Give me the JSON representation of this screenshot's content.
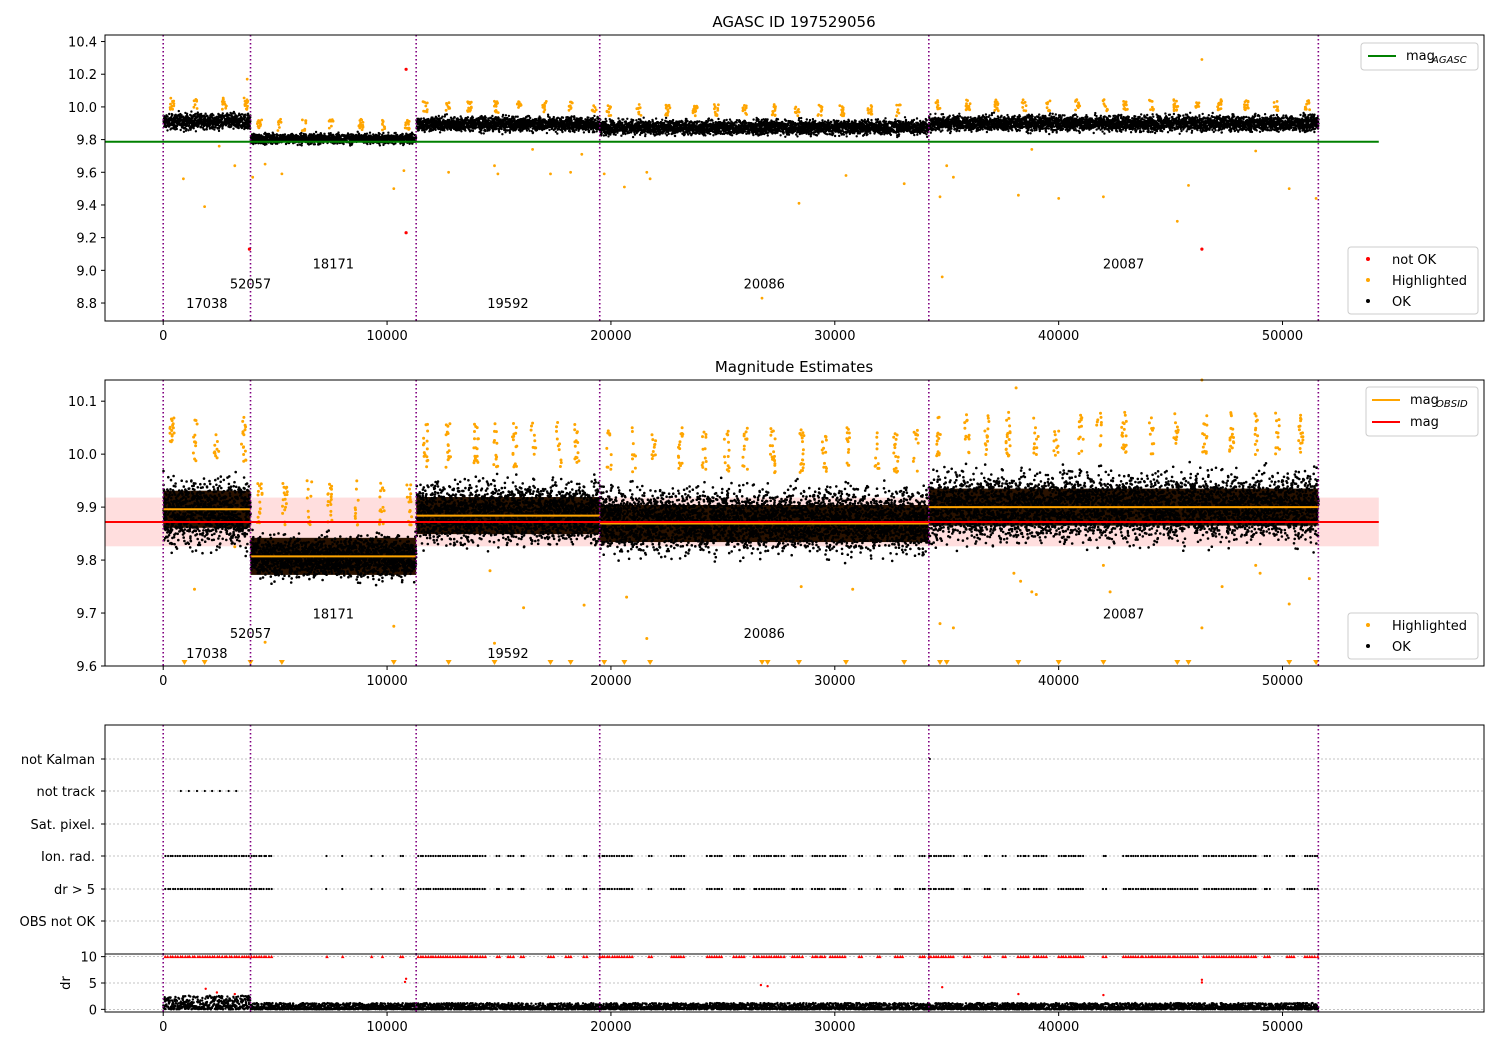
{
  "figure": {
    "title1": "AGASC ID 197529056",
    "title2": "Magnitude Estimates"
  },
  "colors": {
    "ok": "#000000",
    "highlighted": "#ffa500",
    "not_ok": "#ff0000",
    "mag_agasc": "#008000",
    "mag_obsid": "#ffa500",
    "mag": "#ff0000",
    "band": "#ffdede",
    "obs_line": "#800080",
    "grid": "#b0b0b0"
  },
  "chart_data": [
    {
      "type": "scatter",
      "title": "AGASC ID 197529056",
      "xlim": [
        -2600,
        59000
      ],
      "ylim": [
        8.69,
        10.44
      ],
      "xticks": [
        0,
        10000,
        20000,
        30000,
        40000,
        50000
      ],
      "yticks": [
        8.8,
        9.0,
        9.2,
        9.4,
        9.6,
        9.8,
        10.0,
        10.2,
        10.4
      ],
      "legend_upper": {
        "placement": "top-right",
        "entries": [
          {
            "label": "mag",
            "sub": "AGASC",
            "style": "line",
            "color": "#008000"
          }
        ]
      },
      "legend_lower": {
        "placement": "bottom-right",
        "entries": [
          {
            "label": "not OK",
            "style": "dot",
            "color": "#ff0000"
          },
          {
            "label": "Highlighted",
            "style": "dot",
            "color": "#ffa500"
          },
          {
            "label": "OK",
            "style": "dot",
            "color": "#000000"
          }
        ]
      },
      "mag_agasc": {
        "value": 9.787,
        "x_range": [
          -2600,
          54300
        ]
      },
      "obs_boundaries": [
        0,
        3900,
        11300,
        19500,
        34200,
        51600
      ],
      "obsid_labels": [
        {
          "text": "17038",
          "x": 1950,
          "y": 8.77
        },
        {
          "text": "52057",
          "x": 3900,
          "y": 8.89
        },
        {
          "text": "18171",
          "x": 7600,
          "y": 9.01
        },
        {
          "text": "19592",
          "x": 15400,
          "y": 8.77
        },
        {
          "text": "20086",
          "x": 26850,
          "y": 8.89
        },
        {
          "text": "20087",
          "x": 42900,
          "y": 9.01
        }
      ],
      "ok_bands": [
        {
          "x": [
            0,
            3900
          ],
          "y_min": 9.84,
          "y_max": 9.98,
          "y_mean": 9.9
        },
        {
          "x": [
            3900,
            11300
          ],
          "y_min": 9.76,
          "y_max": 9.85,
          "y_mean": 9.8
        },
        {
          "x": [
            11300,
            19500
          ],
          "y_min": 9.83,
          "y_max": 9.96,
          "y_mean": 9.88
        },
        {
          "x": [
            19500,
            34200
          ],
          "y_min": 9.81,
          "y_max": 9.94,
          "y_mean": 9.87
        },
        {
          "x": [
            34200,
            51600
          ],
          "y_min": 9.83,
          "y_max": 9.97,
          "y_mean": 9.9
        }
      ],
      "highlighted_points": [
        [
          900,
          9.56
        ],
        [
          1850,
          9.39
        ],
        [
          2500,
          9.76
        ],
        [
          3200,
          9.64
        ],
        [
          3750,
          10.17
        ],
        [
          4000,
          9.57
        ],
        [
          4550,
          9.65
        ],
        [
          5300,
          9.59
        ],
        [
          10300,
          9.5
        ],
        [
          10750,
          9.61
        ],
        [
          12750,
          9.6
        ],
        [
          14800,
          9.64
        ],
        [
          14950,
          9.59
        ],
        [
          16500,
          9.74
        ],
        [
          17300,
          9.59
        ],
        [
          18200,
          9.6
        ],
        [
          18700,
          9.71
        ],
        [
          19700,
          9.59
        ],
        [
          20600,
          9.51
        ],
        [
          21600,
          9.6
        ],
        [
          21750,
          9.56
        ],
        [
          26750,
          8.83
        ],
        [
          28400,
          9.41
        ],
        [
          30500,
          9.58
        ],
        [
          33100,
          9.53
        ],
        [
          34700,
          9.45
        ],
        [
          34800,
          8.96
        ],
        [
          35000,
          9.64
        ],
        [
          35300,
          9.57
        ],
        [
          38200,
          9.46
        ],
        [
          38800,
          9.74
        ],
        [
          40000,
          9.44
        ],
        [
          42000,
          9.45
        ],
        [
          45300,
          9.3
        ],
        [
          45800,
          9.52
        ],
        [
          46400,
          10.29
        ],
        [
          48800,
          9.73
        ],
        [
          50300,
          9.5
        ],
        [
          51500,
          9.44
        ]
      ],
      "not_ok_points": [
        [
          3850,
          9.13
        ],
        [
          10850,
          10.23
        ],
        [
          10850,
          9.23
        ],
        [
          46400,
          9.13
        ]
      ]
    },
    {
      "type": "scatter",
      "title": "Magnitude Estimates",
      "xlim": [
        -2600,
        59000
      ],
      "ylim": [
        9.6,
        10.14
      ],
      "xticks": [
        0,
        10000,
        20000,
        30000,
        40000,
        50000
      ],
      "yticks": [
        9.6,
        9.7,
        9.8,
        9.9,
        10.0,
        10.1
      ],
      "legend_upper": {
        "placement": "top-right",
        "entries": [
          {
            "label": "mag",
            "sub": "OBSID",
            "style": "line",
            "color": "#ffa500"
          },
          {
            "label": "mag",
            "sub": "",
            "style": "line",
            "color": "#ff0000"
          }
        ]
      },
      "legend_lower": {
        "placement": "bottom-right",
        "entries": [
          {
            "label": "Highlighted",
            "style": "dot",
            "color": "#ffa500"
          },
          {
            "label": "OK",
            "style": "dot",
            "color": "#000000"
          }
        ]
      },
      "mag": {
        "value": 9.872,
        "band": [
          9.826,
          9.918
        ],
        "x_range": [
          -2600,
          54300
        ]
      },
      "obs_boundaries": [
        0,
        3900,
        11300,
        19500,
        34200,
        51600
      ],
      "obsid_labels": [
        {
          "text": "17038",
          "x": 1950,
          "y": 9.615
        },
        {
          "text": "52057",
          "x": 3900,
          "y": 9.653
        },
        {
          "text": "18171",
          "x": 7600,
          "y": 9.69
        },
        {
          "text": "19592",
          "x": 15400,
          "y": 9.615
        },
        {
          "text": "20086",
          "x": 26850,
          "y": 9.653
        },
        {
          "text": "20087",
          "x": 42900,
          "y": 9.69
        }
      ],
      "obsid_segments": [
        {
          "x": [
            0,
            3900
          ],
          "mag_obsid": 9.896,
          "y_min": 9.8,
          "y_max": 9.98
        },
        {
          "x": [
            3900,
            11300
          ],
          "mag_obsid": 9.807,
          "y_min": 9.75,
          "y_max": 9.86
        },
        {
          "x": [
            11300,
            19500
          ],
          "mag_obsid": 9.884,
          "y_min": 9.81,
          "y_max": 9.97
        },
        {
          "x": [
            19500,
            34200
          ],
          "mag_obsid": 9.869,
          "y_min": 9.79,
          "y_max": 9.96
        },
        {
          "x": [
            34200,
            51600
          ],
          "mag_obsid": 9.9,
          "y_min": 9.81,
          "y_max": 9.99
        }
      ],
      "highlighted_points": [
        [
          1400,
          9.745
        ],
        [
          3200,
          9.825
        ],
        [
          4550,
          9.645
        ],
        [
          10300,
          9.675
        ],
        [
          14600,
          9.78
        ],
        [
          14800,
          9.643
        ],
        [
          16100,
          9.71
        ],
        [
          18800,
          9.715
        ],
        [
          20700,
          9.73
        ],
        [
          21600,
          9.652
        ],
        [
          28500,
          9.75
        ],
        [
          30800,
          9.745
        ],
        [
          34700,
          9.68
        ],
        [
          35300,
          9.672
        ],
        [
          38000,
          9.775
        ],
        [
          38300,
          9.76
        ],
        [
          38800,
          9.74
        ],
        [
          39000,
          9.735
        ],
        [
          42000,
          9.79
        ],
        [
          42300,
          9.74
        ],
        [
          46400,
          9.672
        ],
        [
          47300,
          9.75
        ],
        [
          48800,
          9.79
        ],
        [
          49000,
          9.775
        ],
        [
          50300,
          9.717
        ],
        [
          51200,
          9.765
        ],
        [
          38100,
          10.125
        ],
        [
          46400,
          10.14
        ]
      ],
      "off_scale_markers": [
        950,
        1850,
        3900,
        5300,
        10300,
        12750,
        14800,
        17300,
        18200,
        19700,
        20600,
        21750,
        26750,
        27000,
        28400,
        30500,
        33100,
        34700,
        35000,
        38200,
        40000,
        42000,
        45300,
        45800,
        50300,
        51500
      ]
    },
    {
      "type": "scatter",
      "title": "",
      "xlim": [
        -2600,
        59000
      ],
      "flag_labels": [
        "not Kalman",
        "not track",
        "Sat. pixel.",
        "Ion. rad.",
        "dr > 5",
        "OBS not OK"
      ],
      "obs_boundaries": [
        0,
        3900,
        11300,
        19500,
        34200,
        51600
      ],
      "flags": {
        "not track": [
          [
            800,
            3400
          ]
        ],
        "Ion. rad.": [
          [
            100,
            4900
          ],
          [
            7300,
            7400
          ],
          [
            8000,
            8100
          ],
          [
            9300,
            9400
          ],
          [
            9800,
            9900
          ],
          [
            10600,
            10800
          ],
          [
            11400,
            14400
          ],
          [
            14900,
            15100
          ],
          [
            15400,
            15700
          ],
          [
            16000,
            16200
          ],
          [
            17200,
            17500
          ],
          [
            18000,
            18300
          ],
          [
            18800,
            19000
          ],
          [
            19500,
            21000
          ],
          [
            21700,
            21900
          ],
          [
            22700,
            23300
          ],
          [
            24300,
            25000
          ],
          [
            25500,
            26000
          ],
          [
            26400,
            27800
          ],
          [
            28100,
            28600
          ],
          [
            29000,
            29600
          ],
          [
            29800,
            30500
          ],
          [
            31100,
            31300
          ],
          [
            31900,
            32100
          ],
          [
            32700,
            33100
          ],
          [
            33800,
            34100
          ],
          [
            34200,
            35400
          ],
          [
            35800,
            36100
          ],
          [
            36700,
            37000
          ],
          [
            37500,
            37700
          ],
          [
            38200,
            38700
          ],
          [
            38900,
            39500
          ],
          [
            40000,
            41200
          ],
          [
            42000,
            42200
          ],
          [
            42900,
            46300
          ],
          [
            46500,
            48900
          ],
          [
            49200,
            49500
          ],
          [
            50200,
            50600
          ],
          [
            51000,
            51600
          ]
        ],
        "dr > 5": [
          [
            100,
            4900
          ],
          [
            7300,
            7400
          ],
          [
            8000,
            8100
          ],
          [
            9300,
            9400
          ],
          [
            9800,
            9900
          ],
          [
            10600,
            10800
          ],
          [
            11400,
            14400
          ],
          [
            14900,
            15100
          ],
          [
            15400,
            15700
          ],
          [
            16000,
            16200
          ],
          [
            17200,
            17500
          ],
          [
            18000,
            18300
          ],
          [
            18800,
            19000
          ],
          [
            19500,
            21000
          ],
          [
            21700,
            21900
          ],
          [
            22700,
            23300
          ],
          [
            24300,
            25000
          ],
          [
            25500,
            26000
          ],
          [
            26400,
            27800
          ],
          [
            28100,
            28600
          ],
          [
            29000,
            29600
          ],
          [
            29800,
            30500
          ],
          [
            31100,
            31300
          ],
          [
            31900,
            32100
          ],
          [
            32700,
            33100
          ],
          [
            33800,
            34100
          ],
          [
            34200,
            35400
          ],
          [
            35800,
            36100
          ],
          [
            36700,
            37000
          ],
          [
            37500,
            37700
          ],
          [
            38200,
            38700
          ],
          [
            38900,
            39500
          ],
          [
            40000,
            41200
          ],
          [
            42000,
            42200
          ],
          [
            42900,
            46300
          ],
          [
            46500,
            48900
          ],
          [
            49200,
            49500
          ],
          [
            50200,
            50600
          ],
          [
            51000,
            51600
          ]
        ]
      },
      "not_kalman_points": [
        34250
      ]
    },
    {
      "type": "scatter",
      "title": "",
      "ylabel": "dr",
      "xlim": [
        -2600,
        59000
      ],
      "ylim": [
        -0.5,
        10.5
      ],
      "xticks": [
        0,
        10000,
        20000,
        30000,
        40000,
        50000
      ],
      "yticks": [
        0,
        5,
        10
      ],
      "obs_boundaries": [
        0,
        3900,
        11300,
        19500,
        34200,
        51600
      ],
      "ok_dr": {
        "typical_max": 1.2,
        "peak_max": 2.6
      },
      "flagged_dr": [
        [
          1900,
          3.9
        ],
        [
          2400,
          3.2
        ],
        [
          3200,
          2.9
        ],
        [
          10800,
          5.2
        ],
        [
          10850,
          5.8
        ],
        [
          26700,
          4.6
        ],
        [
          27000,
          4.4
        ],
        [
          34800,
          4.2
        ],
        [
          38200,
          2.9
        ],
        [
          42000,
          2.7
        ],
        [
          46400,
          5.1
        ],
        [
          46400,
          5.6
        ]
      ],
      "clipped_markers_at": 10
    }
  ]
}
